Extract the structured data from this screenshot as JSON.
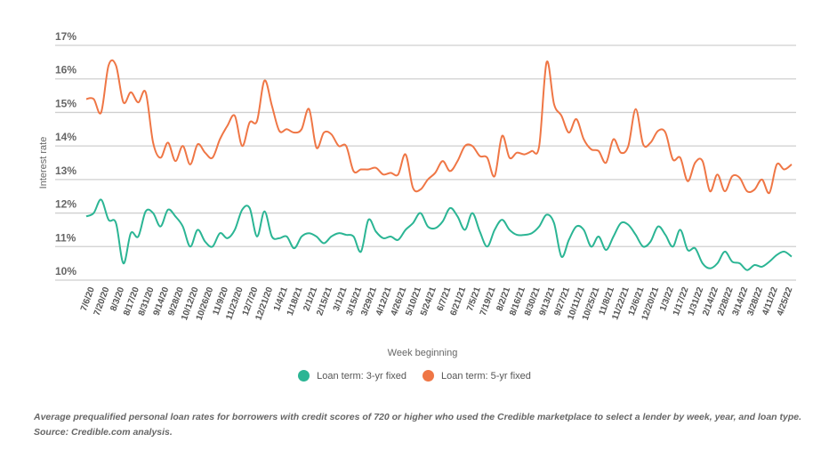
{
  "chart_data": {
    "type": "line",
    "title": "",
    "xlabel": "Week beginning",
    "ylabel": "Interest rate",
    "ylim": [
      10,
      17
    ],
    "yticks": [
      "10%",
      "11%",
      "12%",
      "13%",
      "14%",
      "15%",
      "16%",
      "17%"
    ],
    "ytick_values": [
      10,
      11,
      12,
      13,
      14,
      15,
      16,
      17
    ],
    "grid": true,
    "legend_position": "bottom",
    "x_labels": [
      "7/6/20",
      "7/20/20",
      "8/3/20",
      "8/17/20",
      "8/31/20",
      "9/14/20",
      "9/28/20",
      "10/12/20",
      "10/26/20",
      "11/9/20",
      "11/23/20",
      "12/7/20",
      "12/21/20",
      "1/4/21",
      "1/18/21",
      "2/1/21",
      "2/15/21",
      "3/1/21",
      "3/15/21",
      "3/29/21",
      "4/12/21",
      "4/26/21",
      "5/10/21",
      "5/24/21",
      "6/7/21",
      "6/21/21",
      "7/5/21",
      "7/19/21",
      "8/2/21",
      "8/16/21",
      "8/30/21",
      "9/13/21",
      "9/27/21",
      "10/11/21",
      "10/25/21",
      "11/8/21",
      "11/22/21",
      "12/6/21",
      "12/20/21",
      "1/3/22",
      "1/17/22",
      "1/31/22",
      "2/14/22",
      "2/28/22",
      "3/14/22",
      "3/28/22",
      "4/11/22",
      "4/25/22"
    ],
    "weeks": 96,
    "series": [
      {
        "name": "Loan term: 3-yr fixed",
        "color": "#2bb594",
        "values": [
          11.9,
          12.0,
          12.4,
          11.8,
          11.7,
          10.5,
          11.4,
          11.3,
          12.05,
          12.0,
          11.6,
          12.1,
          11.9,
          11.6,
          11.0,
          11.5,
          11.15,
          11.0,
          11.4,
          11.25,
          11.5,
          12.1,
          12.15,
          11.3,
          12.05,
          11.3,
          11.25,
          11.3,
          10.95,
          11.3,
          11.4,
          11.3,
          11.1,
          11.3,
          11.4,
          11.35,
          11.3,
          10.85,
          11.8,
          11.45,
          11.25,
          11.3,
          11.2,
          11.5,
          11.7,
          12.0,
          11.6,
          11.55,
          11.75,
          12.15,
          11.9,
          11.5,
          12.0,
          11.45,
          11.0,
          11.5,
          11.8,
          11.5,
          11.35,
          11.35,
          11.4,
          11.6,
          11.95,
          11.7,
          10.7,
          11.2,
          11.6,
          11.5,
          11.0,
          11.3,
          10.9,
          11.3,
          11.7,
          11.65,
          11.35,
          11.0,
          11.15,
          11.6,
          11.35,
          11.0,
          11.5,
          10.9,
          10.95,
          10.5,
          10.35,
          10.5,
          10.85,
          10.55,
          10.5,
          10.3,
          10.45,
          10.4,
          10.55,
          10.75,
          10.85,
          10.7
        ]
      },
      {
        "name": "Loan term: 5-yr fixed",
        "color": "#ef7645",
        "values": [
          15.4,
          15.4,
          15.0,
          16.4,
          16.4,
          15.3,
          15.6,
          15.3,
          15.6,
          14.1,
          13.65,
          14.1,
          13.55,
          14.0,
          13.45,
          14.05,
          13.8,
          13.65,
          14.2,
          14.6,
          14.9,
          14.0,
          14.7,
          14.75,
          15.95,
          15.2,
          14.45,
          14.5,
          14.4,
          14.5,
          15.1,
          13.95,
          14.4,
          14.35,
          14.0,
          14.0,
          13.25,
          13.3,
          13.3,
          13.35,
          13.15,
          13.2,
          13.15,
          13.75,
          12.75,
          12.7,
          13.0,
          13.2,
          13.55,
          13.25,
          13.55,
          14.0,
          14.0,
          13.7,
          13.65,
          13.1,
          14.3,
          13.65,
          13.8,
          13.75,
          13.85,
          14.0,
          16.5,
          15.25,
          14.9,
          14.4,
          14.8,
          14.2,
          13.9,
          13.85,
          13.5,
          14.2,
          13.8,
          14.0,
          15.1,
          14.05,
          14.1,
          14.45,
          14.4,
          13.6,
          13.65,
          12.95,
          13.5,
          13.55,
          12.65,
          13.15,
          12.65,
          13.1,
          13.05,
          12.65,
          12.7,
          13.0,
          12.6,
          13.45,
          13.3,
          13.45
        ]
      }
    ]
  },
  "legend": {
    "items": [
      {
        "label": "Loan term: 3-yr fixed",
        "color": "#2bb594"
      },
      {
        "label": "Loan term: 5-yr fixed",
        "color": "#ef7645"
      }
    ]
  },
  "caption": "Average prequalified personal loan rates for borrowers with credit scores of 720 or higher who used the Credible marketplace to select a lender by week, year, and loan type. Source: Credible.com analysis."
}
